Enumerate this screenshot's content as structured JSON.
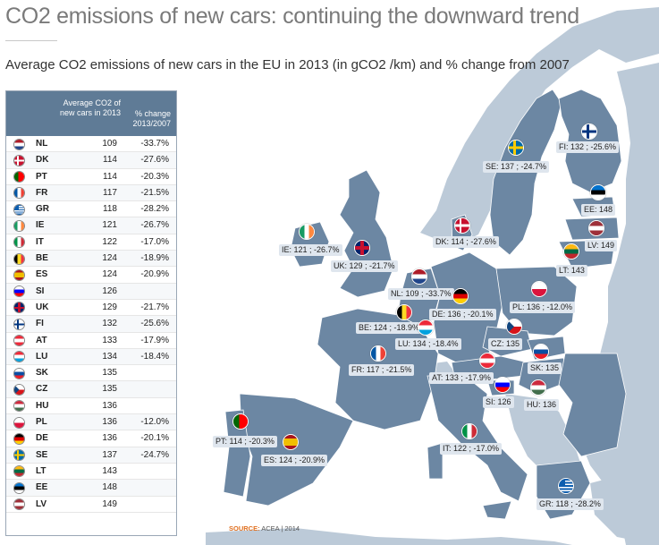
{
  "title": "CO2 emissions of new cars: continuing the downward trend",
  "subtitle": "Average CO2 emissions of new cars in the EU in 2013 (in gCO2 /km) and % change from 2007",
  "table": {
    "header_value": "Average CO2 of new cars in 2013",
    "header_change": "% change 2013/2007",
    "rows": [
      {
        "code": "NL",
        "value": "109",
        "change": "-33.7%",
        "flag": "nl"
      },
      {
        "code": "DK",
        "value": "114",
        "change": "-27.6%",
        "flag": "dk"
      },
      {
        "code": "PT",
        "value": "114",
        "change": "-20.3%",
        "flag": "pt"
      },
      {
        "code": "FR",
        "value": "117",
        "change": "-21.5%",
        "flag": "fr"
      },
      {
        "code": "GR",
        "value": "118",
        "change": "-28.2%",
        "flag": "gr"
      },
      {
        "code": "IE",
        "value": "121",
        "change": "-26.7%",
        "flag": "ie"
      },
      {
        "code": "IT",
        "value": "122",
        "change": "-17.0%",
        "flag": "it"
      },
      {
        "code": "BE",
        "value": "124",
        "change": "-18.9%",
        "flag": "be"
      },
      {
        "code": "ES",
        "value": "124",
        "change": "-20.9%",
        "flag": "es"
      },
      {
        "code": "SI",
        "value": "126",
        "change": "",
        "flag": "si"
      },
      {
        "code": "UK",
        "value": "129",
        "change": "-21.7%",
        "flag": "uk"
      },
      {
        "code": "FI",
        "value": "132",
        "change": "-25.6%",
        "flag": "fi"
      },
      {
        "code": "AT",
        "value": "133",
        "change": "-17.9%",
        "flag": "at"
      },
      {
        "code": "LU",
        "value": "134",
        "change": "-18.4%",
        "flag": "lu"
      },
      {
        "code": "SK",
        "value": "135",
        "change": "",
        "flag": "sk"
      },
      {
        "code": "CZ",
        "value": "135",
        "change": "",
        "flag": "cz"
      },
      {
        "code": "HU",
        "value": "136",
        "change": "",
        "flag": "hu"
      },
      {
        "code": "PL",
        "value": "136",
        "change": "-12.0%",
        "flag": "pl"
      },
      {
        "code": "DE",
        "value": "136",
        "change": "-20.1%",
        "flag": "de"
      },
      {
        "code": "SE",
        "value": "137",
        "change": "-24.7%",
        "flag": "se"
      },
      {
        "code": "LT",
        "value": "143",
        "change": "",
        "flag": "lt"
      },
      {
        "code": "EE",
        "value": "148",
        "change": "",
        "flag": "ee"
      },
      {
        "code": "LV",
        "value": "149",
        "change": "",
        "flag": "lv"
      }
    ]
  },
  "map_labels": [
    {
      "text": "FI: 132 ; -25.6%",
      "flag": "fi"
    },
    {
      "text": "SE: 137 ; -24.7%",
      "flag": "se"
    },
    {
      "text": "EE: 148",
      "flag": "ee"
    },
    {
      "text": "LV: 149",
      "flag": "lv"
    },
    {
      "text": "LT: 143",
      "flag": "lt"
    },
    {
      "text": "DK: 114 ; -27.6%",
      "flag": "dk"
    },
    {
      "text": "IE: 121 ; -26.7%",
      "flag": "ie"
    },
    {
      "text": "UK: 129 ; -21.7%",
      "flag": "uk"
    },
    {
      "text": "NL: 109 ; -33.7%",
      "flag": "nl"
    },
    {
      "text": "DE: 136 ; -20.1%",
      "flag": "de"
    },
    {
      "text": "PL: 136 ; -12.0%",
      "flag": "pl"
    },
    {
      "text": "BE: 124 ; -18.9%",
      "flag": "be"
    },
    {
      "text": "LU: 134 ; -18.4%",
      "flag": "lu"
    },
    {
      "text": "CZ: 135",
      "flag": "cz"
    },
    {
      "text": "SK: 135",
      "flag": "sk"
    },
    {
      "text": "FR: 117 ; -21.5%",
      "flag": "fr"
    },
    {
      "text": "AT: 133 ; -17.9%",
      "flag": "at"
    },
    {
      "text": "SI: 126",
      "flag": "si"
    },
    {
      "text": "HU: 136",
      "flag": "hu"
    },
    {
      "text": "PT: 114 ; -20.3%",
      "flag": "pt"
    },
    {
      "text": "ES: 124 ; -20.9%",
      "flag": "es"
    },
    {
      "text": "IT: 122 ; -17.0%",
      "flag": "it"
    },
    {
      "text": "GR: 118 ; -28.2%",
      "flag": "gr"
    }
  ],
  "source": {
    "label": "SOURCE:",
    "text": "ACEA | 2014"
  },
  "colors": {
    "eu_land": "#6c87a3",
    "non_eu_land": "#bccad8",
    "sea": "#ffffff",
    "table_header": "#5f7b96",
    "label_bg": "#dfe6ee",
    "source_accent": "#e07020"
  }
}
